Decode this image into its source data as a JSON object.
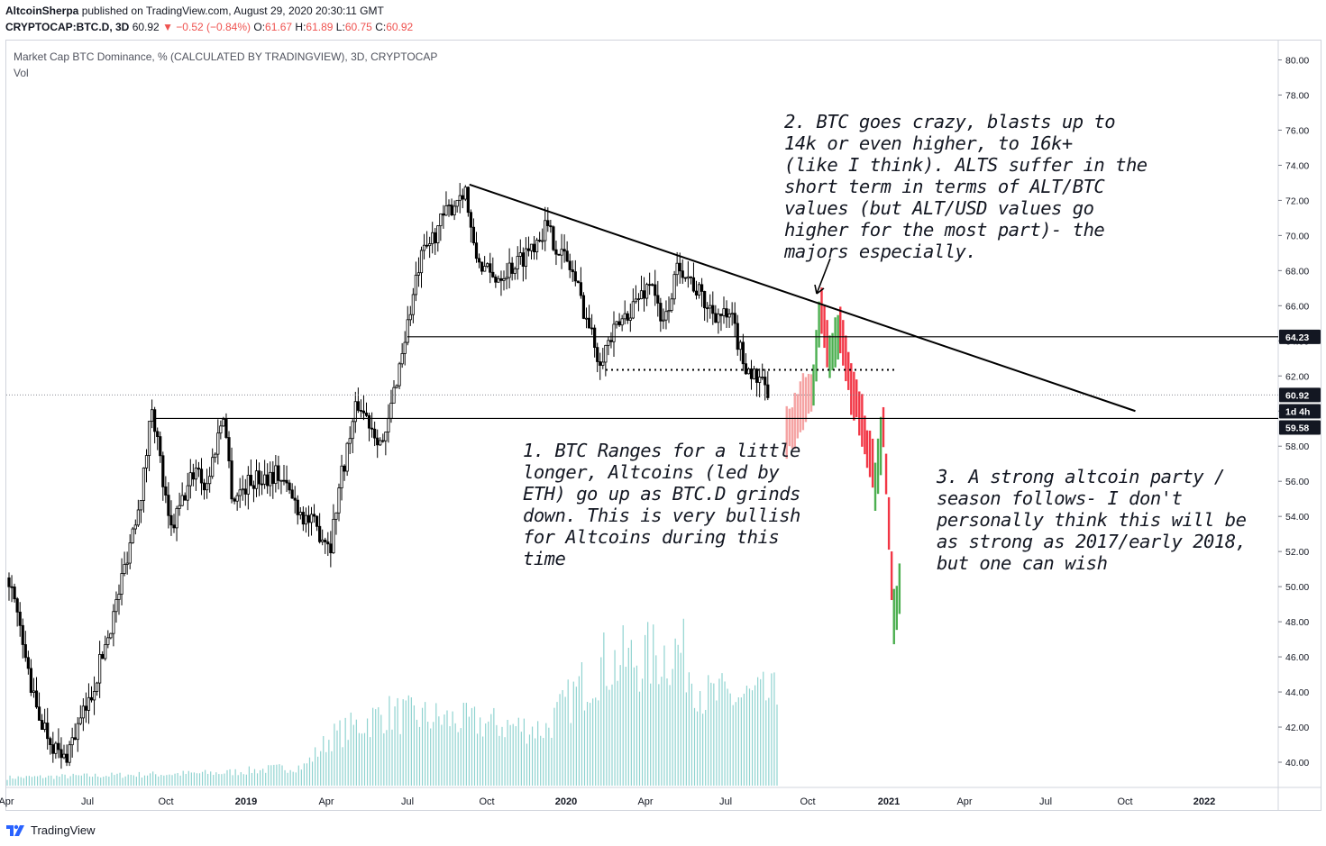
{
  "header": {
    "author": "AltcoinSherpa",
    "published": "published on TradingView.com, August 29, 2020 20:30:11 GMT",
    "symbol": "CRYPTOCAP:BTC.D, 3D",
    "last": "60.92",
    "change": "−0.52 (−0.84%)",
    "ohlc_o_label": "O:",
    "ohlc_o": "61.67",
    "ohlc_h_label": "H:",
    "ohlc_h": "61.89",
    "ohlc_l_label": "L:",
    "ohlc_l": "60.75",
    "ohlc_c_label": "C:",
    "ohlc_c": "60.92"
  },
  "legend": {
    "title": "Market Cap BTC Dominance, % (CALCULATED BY TRADINGVIEW), 3D, CRYPTOCAP",
    "volume": "Vol"
  },
  "annotations": {
    "note1": "1. BTC Ranges for a little\nlonger, Altcoins (led by\nETH) go up as BTC.D grinds\ndown. This is very bullish\nfor Altcoins during this\ntime",
    "note2": "2. BTC goes crazy, blasts up to\n14k or even higher, to 16k+\n(like I think). ALTS suffer in the\nshort term in terms of ALT/BTC\nvalues (but ALT/USD values go\nhigher for the most part)- the\nmajors especially.",
    "note3": "3. A strong altcoin party /\nseason follows- I don't\npersonally think this will be\nas strong as 2017/early 2018,\nbut one can wish"
  },
  "footer": {
    "brand": "TradingView",
    "logo_icon": "tradingview-logo-icon"
  },
  "colors": {
    "up": "#000000",
    "down": "#000000",
    "projection_up": "#4caf50",
    "projection_down": "#f23645",
    "projection_fade": "#f5a3a3",
    "volume": "#8fd3d0",
    "price_tag": "#131722"
  },
  "chart_data": {
    "type": "candlestick",
    "y_range": [
      38.5,
      81.0
    ],
    "y_ticks": [
      "80.00",
      "78.00",
      "76.00",
      "74.00",
      "72.00",
      "70.00",
      "68.00",
      "66.00",
      "64.00",
      "62.00",
      "60.00",
      "58.00",
      "56.00",
      "54.00",
      "52.00",
      "50.00",
      "48.00",
      "46.00",
      "44.00",
      "42.00",
      "40.00"
    ],
    "x_ticks": [
      "Apr",
      "Jul",
      "Oct",
      "2019",
      "Apr",
      "Jul",
      "Oct",
      "2020",
      "Apr",
      "Jul",
      "Oct",
      "2021",
      "Apr",
      "Jul",
      "Oct",
      "2022"
    ],
    "price_labels": [
      {
        "value": 64.23,
        "text": "64.23"
      },
      {
        "value": 60.92,
        "text": "60.92"
      },
      {
        "text": "1d 4h"
      },
      {
        "value": 59.58,
        "text": "59.58"
      }
    ],
    "horizontal_lines": [
      64.23,
      59.58
    ],
    "dotted_support": 62.35,
    "trendline": {
      "from": {
        "date": "2019-09",
        "value": 72.9
      },
      "to": {
        "date": "2021-10",
        "value": 60.0
      }
    },
    "history_path": [
      [
        "2018-04",
        50.5
      ],
      [
        "2018-05",
        43.0
      ],
      [
        "2018-06",
        40.0
      ],
      [
        "2018-07",
        43.5
      ],
      [
        "2018-08",
        49.0
      ],
      [
        "2018-09",
        56.0
      ],
      [
        "2018-09",
        60.5
      ],
      [
        "2018-10",
        53.0
      ],
      [
        "2018-11",
        57.0
      ],
      [
        "2018-11",
        55.5
      ],
      [
        "2018-12",
        60.0
      ],
      [
        "2018-12",
        55.0
      ],
      [
        "2019-01",
        56.0
      ],
      [
        "2019-02",
        56.5
      ],
      [
        "2019-03",
        54.0
      ],
      [
        "2019-04",
        52.5
      ],
      [
        "2019-04",
        56.0
      ],
      [
        "2019-05",
        60.5
      ],
      [
        "2019-06",
        58.0
      ],
      [
        "2019-06",
        61.0
      ],
      [
        "2019-07",
        66.0
      ],
      [
        "2019-07",
        68.5
      ],
      [
        "2019-08",
        70.5
      ],
      [
        "2019-09",
        72.8
      ],
      [
        "2019-09",
        69.0
      ],
      [
        "2019-10",
        67.5
      ],
      [
        "2019-11",
        68.5
      ],
      [
        "2019-12",
        70.5
      ],
      [
        "2020-01",
        68.0
      ],
      [
        "2020-02",
        63.0
      ],
      [
        "2020-03",
        65.5
      ],
      [
        "2020-04",
        67.5
      ],
      [
        "2020-04",
        64.5
      ],
      [
        "2020-05",
        68.5
      ],
      [
        "2020-06",
        66.0
      ],
      [
        "2020-07",
        65.0
      ],
      [
        "2020-07",
        63.0
      ],
      [
        "2020-08",
        61.5
      ],
      [
        "2020-08",
        61.0
      ]
    ],
    "projection_path": [
      [
        "2020-09",
        58.5
      ],
      [
        "2020-09",
        59.5
      ],
      [
        "2020-10",
        61.5
      ],
      [
        "2020-10",
        66.0
      ],
      [
        "2020-10",
        63.0
      ],
      [
        "2020-11",
        65.0
      ],
      [
        "2020-11",
        62.0
      ],
      [
        "2020-11",
        60.5
      ],
      [
        "2020-12",
        58.0
      ],
      [
        "2020-12",
        56.0
      ],
      [
        "2020-12",
        59.0
      ],
      [
        "2021-01",
        48.5
      ],
      [
        "2021-01",
        50.5
      ]
    ],
    "volume_profile": [
      [
        "2018-04",
        0.05
      ],
      [
        "2018-12",
        0.08
      ],
      [
        "2019-03",
        0.12
      ],
      [
        "2019-04",
        0.3
      ],
      [
        "2019-06",
        0.45
      ],
      [
        "2019-09",
        0.4
      ],
      [
        "2019-12",
        0.35
      ],
      [
        "2020-02",
        0.75
      ],
      [
        "2020-04",
        0.8
      ],
      [
        "2020-05",
        0.85
      ],
      [
        "2020-06",
        0.55
      ],
      [
        "2020-08",
        0.55
      ]
    ]
  }
}
